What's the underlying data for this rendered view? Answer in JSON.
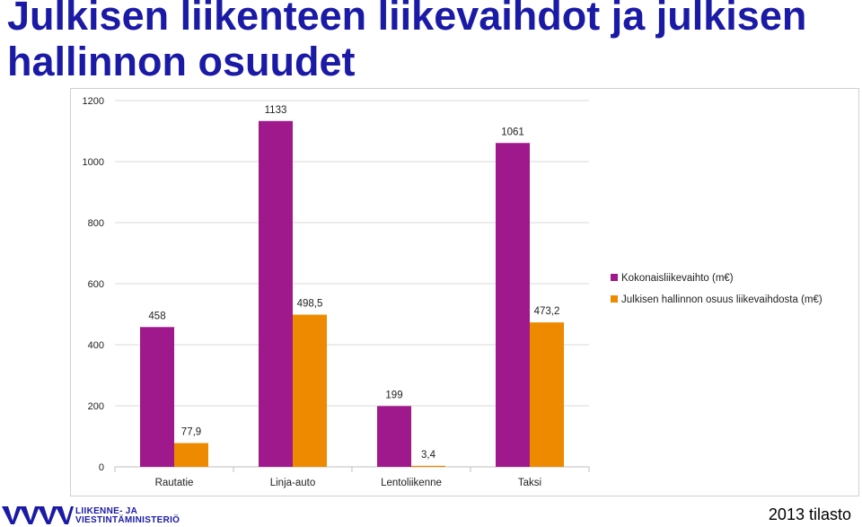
{
  "slide": {
    "title": "Julkisen liikenteen liikevaihdot ja julkisen hallinnon osuudet",
    "footer_note": "2013 tilasto"
  },
  "logo": {
    "line1": "LIIKENNE- JA",
    "line2": "VIESTINTÄMINISTERIÖ",
    "icon": "ministry-logo-icon",
    "color": "#1a1aa6"
  },
  "chart_data": {
    "type": "bar",
    "categories": [
      "Rautatie",
      "Linja-auto",
      "Lentoliikenne",
      "Taksi"
    ],
    "series": [
      {
        "name": "Kokonaisliikevaihto (m€)",
        "values": [
          458,
          1133,
          199,
          1061
        ],
        "labels": [
          "458",
          "1133",
          "199",
          "1061"
        ],
        "color": "#a0198c"
      },
      {
        "name": "Julkisen hallinnon osuus liikevaihdosta (m€)",
        "values": [
          77.9,
          498.5,
          3.4,
          473.2
        ],
        "labels": [
          "77,9",
          "498,5",
          "3,4",
          "473,2"
        ],
        "color": "#ee8a00"
      }
    ],
    "ylim": [
      0,
      1200
    ],
    "yticks": [
      0,
      200,
      400,
      600,
      800,
      1000,
      1200
    ],
    "grid": true,
    "legend": "right"
  }
}
